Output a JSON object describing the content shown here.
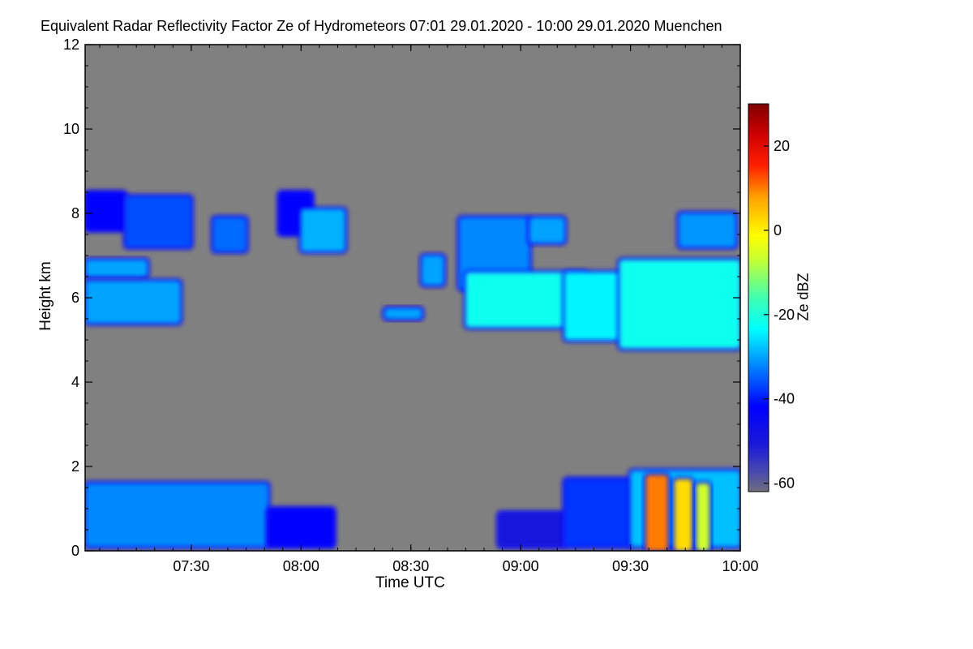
{
  "chart_data": {
    "type": "heatmap",
    "title": "Equivalent Radar Reflectivity Factor Ze of Hydrometeors   07:01 29.01.2020 - 10:00 29.01.2020 Muenchen",
    "xlabel": "Time UTC",
    "ylabel": "Height km",
    "x_ticks": [
      "07:30",
      "08:00",
      "08:30",
      "09:00",
      "09:30",
      "10:00"
    ],
    "x_tick_hours": [
      7.5,
      8.0,
      8.5,
      9.0,
      9.5,
      10.0
    ],
    "xlim_hours": [
      7.0167,
      10.0
    ],
    "y_ticks": [
      "0",
      "2",
      "4",
      "6",
      "8",
      "10",
      "12"
    ],
    "y_tick_values": [
      0,
      2,
      4,
      6,
      8,
      10,
      12
    ],
    "ylim": [
      0,
      12
    ],
    "background_color": "#808080",
    "colorbar": {
      "label": "Ze dBZ",
      "range": [
        -62,
        30
      ],
      "ticks": [
        "20",
        "0",
        "-20",
        "-40",
        "-60"
      ],
      "tick_values": [
        20,
        0,
        -20,
        -40,
        -60
      ],
      "colormap": "jet"
    },
    "regions": [
      {
        "t0": 7.02,
        "t1": 7.2,
        "h0": 7.6,
        "h1": 8.5,
        "ze": -42
      },
      {
        "t0": 7.2,
        "t1": 7.5,
        "h0": 7.2,
        "h1": 8.4,
        "ze": -36
      },
      {
        "t0": 7.6,
        "t1": 7.75,
        "h0": 7.1,
        "h1": 7.9,
        "ze": -34
      },
      {
        "t0": 7.9,
        "t1": 8.05,
        "h0": 7.5,
        "h1": 8.5,
        "ze": -42
      },
      {
        "t0": 8.0,
        "t1": 8.2,
        "h0": 7.1,
        "h1": 8.1,
        "ze": -29
      },
      {
        "t0": 8.72,
        "t1": 9.04,
        "h0": 6.2,
        "h1": 7.9,
        "ze": -32
      },
      {
        "t0": 9.04,
        "t1": 9.2,
        "h0": 7.3,
        "h1": 7.9,
        "ze": -30
      },
      {
        "t0": 9.72,
        "t1": 9.98,
        "h0": 7.2,
        "h1": 8.0,
        "ze": -31
      },
      {
        "t0": 7.02,
        "t1": 7.3,
        "h0": 6.5,
        "h1": 6.9,
        "ze": -30
      },
      {
        "t0": 7.02,
        "t1": 7.45,
        "h0": 5.4,
        "h1": 6.4,
        "ze": -30
      },
      {
        "t0": 8.38,
        "t1": 8.55,
        "h0": 5.5,
        "h1": 5.75,
        "ze": -30
      },
      {
        "t0": 8.55,
        "t1": 8.65,
        "h0": 6.3,
        "h1": 7.0,
        "ze": -30
      },
      {
        "t0": 8.75,
        "t1": 9.3,
        "h0": 5.3,
        "h1": 6.6,
        "ze": -22
      },
      {
        "t0": 9.2,
        "t1": 9.7,
        "h0": 5.0,
        "h1": 6.6,
        "ze": -24
      },
      {
        "t0": 9.45,
        "t1": 10.0,
        "h0": 4.8,
        "h1": 6.9,
        "ze": -22
      },
      {
        "t0": 7.02,
        "t1": 7.85,
        "h0": 0.1,
        "h1": 1.6,
        "ze": -32
      },
      {
        "t0": 7.85,
        "t1": 8.15,
        "h0": 0.1,
        "h1": 1.0,
        "ze": -42
      },
      {
        "t0": 8.9,
        "t1": 9.2,
        "h0": 0.1,
        "h1": 0.9,
        "ze": -50
      },
      {
        "t0": 9.2,
        "t1": 9.5,
        "h0": 0.1,
        "h1": 1.7,
        "ze": -38
      },
      {
        "t0": 9.5,
        "t1": 10.0,
        "h0": 0.1,
        "h1": 1.9,
        "ze": -28
      },
      {
        "t0": 9.57,
        "t1": 9.67,
        "h0": 0.0,
        "h1": 1.8,
        "ze": 10
      },
      {
        "t0": 9.7,
        "t1": 9.78,
        "h0": 0.0,
        "h1": 1.7,
        "ze": 2
      },
      {
        "t0": 9.8,
        "t1": 9.86,
        "h0": 0.0,
        "h1": 1.6,
        "ze": -6
      }
    ]
  }
}
